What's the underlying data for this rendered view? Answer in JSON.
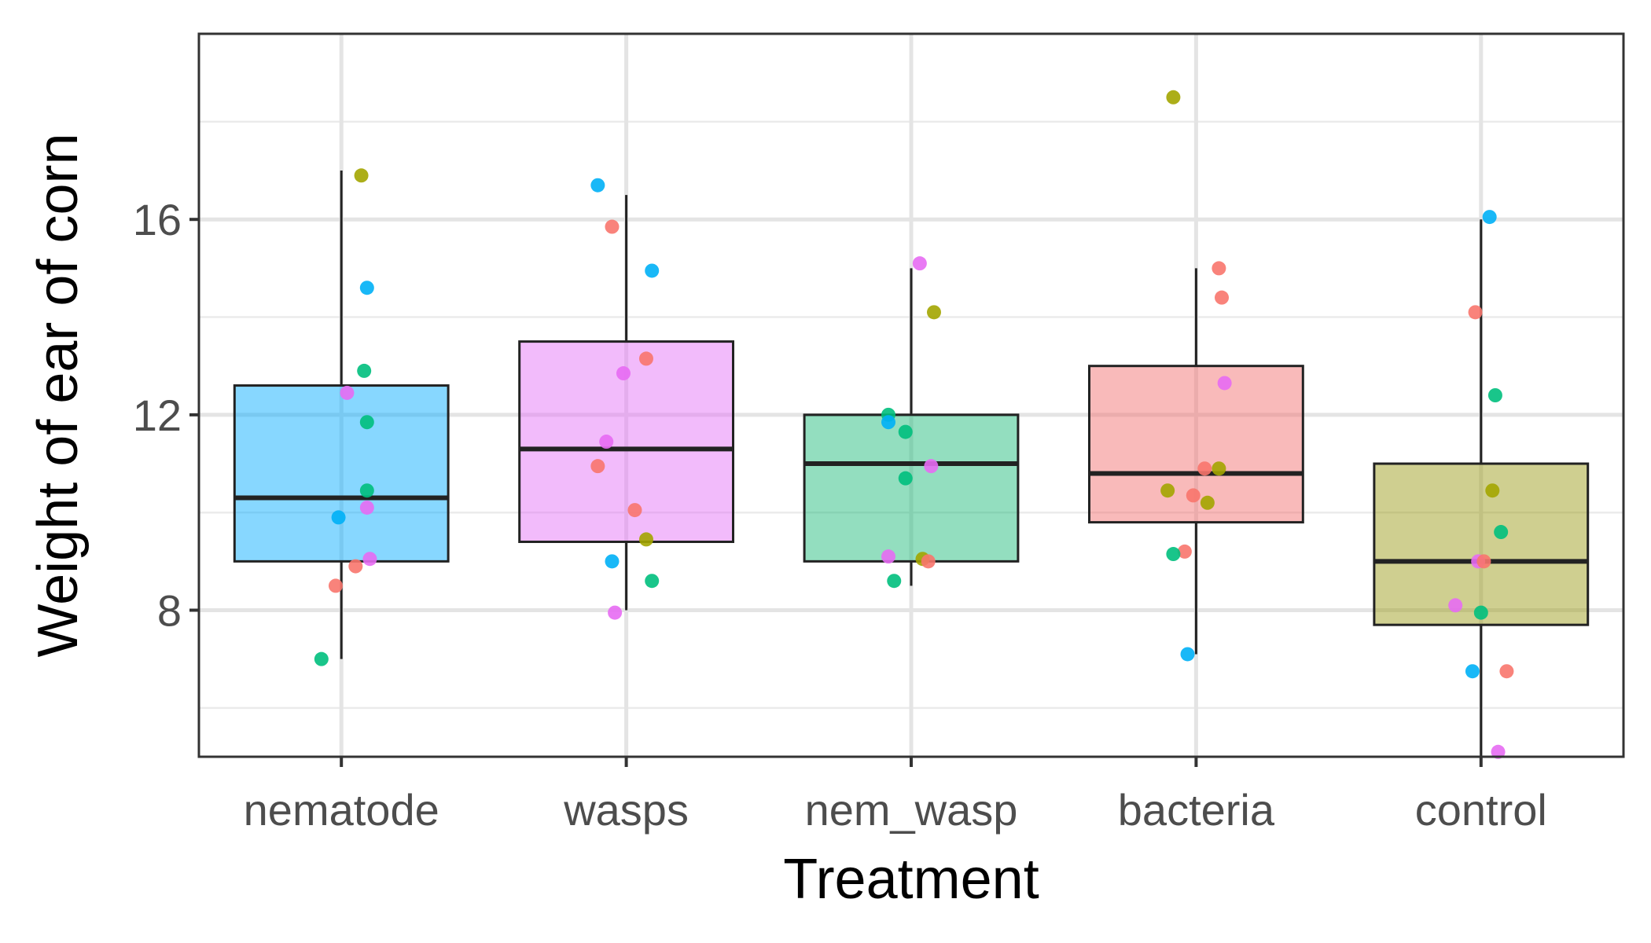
{
  "chart_data": {
    "type": "box",
    "title": "",
    "xlabel": "Treatment",
    "ylabel": "Weight of ear of corn",
    "ylim": [
      5,
      19.8
    ],
    "yticks": [
      8,
      12,
      16
    ],
    "y_minor_gridlines": [
      6,
      10,
      14,
      18
    ],
    "grid": true,
    "legend": "none",
    "categories": [
      "nematode",
      "wasps",
      "nem_wasp",
      "bacteria",
      "control"
    ],
    "boxes": [
      {
        "category": "nematode",
        "fill": "#00A9FF",
        "whisker_low": 7.0,
        "q1": 9.0,
        "median": 10.3,
        "q3": 12.6,
        "whisker_high": 17.0
      },
      {
        "category": "wasps",
        "fill": "#E36EF6",
        "whisker_low": 8.0,
        "q1": 9.4,
        "median": 11.3,
        "q3": 13.5,
        "whisker_high": 16.5
      },
      {
        "category": "nem_wasp",
        "fill": "#1AB877",
        "whisker_low": 8.5,
        "q1": 9.0,
        "median": 11.0,
        "q3": 12.0,
        "whisker_high": 15.0
      },
      {
        "category": "bacteria",
        "fill": "#F26C6C",
        "whisker_low": 7.1,
        "q1": 9.8,
        "median": 10.8,
        "q3": 13.0,
        "whisker_high": 15.0
      },
      {
        "category": "control",
        "fill": "#9A9A14",
        "whisker_low": 5.0,
        "q1": 7.7,
        "median": 9.0,
        "q3": 11.0,
        "whisker_high": 16.0
      }
    ],
    "point_colors": [
      "#F8766D",
      "#A3A500",
      "#00BF7D",
      "#00B0F6",
      "#E76BF3"
    ],
    "points": [
      {
        "category": "nematode",
        "jitter": 0.07,
        "y": 16.9,
        "color": 1
      },
      {
        "category": "nematode",
        "jitter": 0.09,
        "y": 14.6,
        "color": 3
      },
      {
        "category": "nematode",
        "jitter": 0.08,
        "y": 12.9,
        "color": 2
      },
      {
        "category": "nematode",
        "jitter": 0.02,
        "y": 12.45,
        "color": 4
      },
      {
        "category": "nematode",
        "jitter": 0.09,
        "y": 11.85,
        "color": 2
      },
      {
        "category": "nematode",
        "jitter": 0.09,
        "y": 10.45,
        "color": 2
      },
      {
        "category": "nematode",
        "jitter": 0.09,
        "y": 10.1,
        "color": 4
      },
      {
        "category": "nematode",
        "jitter": -0.01,
        "y": 9.9,
        "color": 3
      },
      {
        "category": "nematode",
        "jitter": 0.1,
        "y": 9.05,
        "color": 4
      },
      {
        "category": "nematode",
        "jitter": 0.05,
        "y": 8.9,
        "color": 0
      },
      {
        "category": "nematode",
        "jitter": -0.02,
        "y": 8.5,
        "color": 0
      },
      {
        "category": "nematode",
        "jitter": -0.07,
        "y": 7.0,
        "color": 2
      },
      {
        "category": "wasps",
        "jitter": -0.1,
        "y": 16.7,
        "color": 3
      },
      {
        "category": "wasps",
        "jitter": -0.05,
        "y": 15.85,
        "color": 0
      },
      {
        "category": "wasps",
        "jitter": 0.09,
        "y": 14.95,
        "color": 3
      },
      {
        "category": "wasps",
        "jitter": 0.07,
        "y": 13.15,
        "color": 0
      },
      {
        "category": "wasps",
        "jitter": -0.01,
        "y": 12.85,
        "color": 4
      },
      {
        "category": "wasps",
        "jitter": -0.07,
        "y": 11.45,
        "color": 4
      },
      {
        "category": "wasps",
        "jitter": -0.1,
        "y": 10.95,
        "color": 0
      },
      {
        "category": "wasps",
        "jitter": 0.03,
        "y": 10.05,
        "color": 0
      },
      {
        "category": "wasps",
        "jitter": 0.07,
        "y": 9.45,
        "color": 1
      },
      {
        "category": "wasps",
        "jitter": -0.05,
        "y": 9.0,
        "color": 3
      },
      {
        "category": "wasps",
        "jitter": 0.09,
        "y": 8.6,
        "color": 2
      },
      {
        "category": "wasps",
        "jitter": -0.04,
        "y": 7.95,
        "color": 4
      },
      {
        "category": "nem_wasp",
        "jitter": 0.03,
        "y": 15.1,
        "color": 4
      },
      {
        "category": "nem_wasp",
        "jitter": 0.08,
        "y": 14.1,
        "color": 1
      },
      {
        "category": "nem_wasp",
        "jitter": -0.08,
        "y": 12.0,
        "color": 2
      },
      {
        "category": "nem_wasp",
        "jitter": -0.08,
        "y": 11.85,
        "color": 3
      },
      {
        "category": "nem_wasp",
        "jitter": -0.02,
        "y": 11.65,
        "color": 2
      },
      {
        "category": "nem_wasp",
        "jitter": 0.07,
        "y": 10.95,
        "color": 4
      },
      {
        "category": "nem_wasp",
        "jitter": -0.02,
        "y": 10.7,
        "color": 2
      },
      {
        "category": "nem_wasp",
        "jitter": -0.08,
        "y": 9.1,
        "color": 4
      },
      {
        "category": "nem_wasp",
        "jitter": 0.04,
        "y": 9.05,
        "color": 1
      },
      {
        "category": "nem_wasp",
        "jitter": 0.06,
        "y": 9.0,
        "color": 0
      },
      {
        "category": "nem_wasp",
        "jitter": -0.06,
        "y": 8.6,
        "color": 2
      },
      {
        "category": "bacteria",
        "jitter": -0.08,
        "y": 18.5,
        "color": 1
      },
      {
        "category": "bacteria",
        "jitter": 0.08,
        "y": 15.0,
        "color": 0
      },
      {
        "category": "bacteria",
        "jitter": 0.09,
        "y": 14.4,
        "color": 0
      },
      {
        "category": "bacteria",
        "jitter": 0.1,
        "y": 12.65,
        "color": 4
      },
      {
        "category": "bacteria",
        "jitter": 0.03,
        "y": 10.9,
        "color": 0
      },
      {
        "category": "bacteria",
        "jitter": 0.08,
        "y": 10.9,
        "color": 1
      },
      {
        "category": "bacteria",
        "jitter": -0.1,
        "y": 10.45,
        "color": 1
      },
      {
        "category": "bacteria",
        "jitter": -0.01,
        "y": 10.35,
        "color": 0
      },
      {
        "category": "bacteria",
        "jitter": 0.04,
        "y": 10.2,
        "color": 1
      },
      {
        "category": "bacteria",
        "jitter": -0.04,
        "y": 9.2,
        "color": 0
      },
      {
        "category": "bacteria",
        "jitter": -0.08,
        "y": 9.15,
        "color": 2
      },
      {
        "category": "bacteria",
        "jitter": -0.03,
        "y": 7.1,
        "color": 3
      },
      {
        "category": "control",
        "jitter": 0.03,
        "y": 16.05,
        "color": 3
      },
      {
        "category": "control",
        "jitter": -0.02,
        "y": 14.1,
        "color": 0
      },
      {
        "category": "control",
        "jitter": 0.05,
        "y": 12.4,
        "color": 2
      },
      {
        "category": "control",
        "jitter": 0.04,
        "y": 10.45,
        "color": 1
      },
      {
        "category": "control",
        "jitter": 0.07,
        "y": 9.6,
        "color": 2
      },
      {
        "category": "control",
        "jitter": -0.01,
        "y": 9.0,
        "color": 4
      },
      {
        "category": "control",
        "jitter": 0.01,
        "y": 9.0,
        "color": 0
      },
      {
        "category": "control",
        "jitter": -0.09,
        "y": 8.1,
        "color": 4
      },
      {
        "category": "control",
        "jitter": 0.0,
        "y": 7.95,
        "color": 2
      },
      {
        "category": "control",
        "jitter": -0.03,
        "y": 6.75,
        "color": 3
      },
      {
        "category": "control",
        "jitter": 0.09,
        "y": 6.75,
        "color": 0
      },
      {
        "category": "control",
        "jitter": 0.06,
        "y": 5.1,
        "color": 4
      }
    ]
  }
}
